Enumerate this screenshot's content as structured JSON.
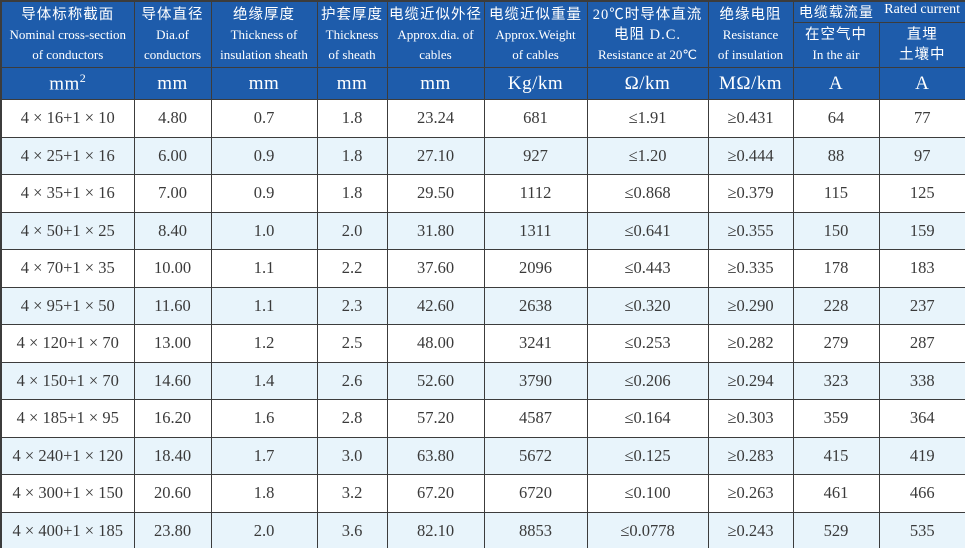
{
  "colors": {
    "header_bg": "#1e5cab",
    "row_alt_bg": "#e8f4fb",
    "border": "#3c3c3c",
    "body_text": "#3a3a3a",
    "header_text": "#ffffff"
  },
  "header": {
    "col1": {
      "zh": "导体标称截面",
      "en": "Nominal cross-section\nof conductors",
      "unit": "mm²"
    },
    "col2": {
      "zh": "导体直径",
      "en": "Dia.of\nconductors",
      "unit": "mm"
    },
    "col3": {
      "zh": "绝缘厚度",
      "en": "Thickness of\ninsulation sheath",
      "unit": "mm"
    },
    "col4": {
      "zh": "护套厚度",
      "en": "Thickness\nof sheath",
      "unit": "mm"
    },
    "col5": {
      "zh": "电缆近似外径",
      "en": "Approx.dia. of\ncables",
      "unit": "mm"
    },
    "col6": {
      "zh": "电缆近似重量",
      "en": "Approx.Weight\nof cables",
      "unit": "Kg/km"
    },
    "col7": {
      "zh": "20℃时导体直流\n电阻 D.C.",
      "en": "Resistance at 20℃",
      "unit": "Ω/km"
    },
    "col8": {
      "zh": "绝缘电阻",
      "en": "Resistance\nof insulation",
      "unit": "MΩ/km"
    },
    "group": {
      "zh": "电缆载流量",
      "en": "Rated current"
    },
    "col9": {
      "zh": "在空气中",
      "en": "In the air",
      "unit": "A"
    },
    "col10": {
      "zh": "直埋\n土壤中",
      "unit": "A"
    }
  },
  "rows": [
    [
      "4 × 16+1 × 10",
      "4.80",
      "0.7",
      "1.8",
      "23.24",
      "681",
      "≤1.91",
      "≥0.431",
      "64",
      "77"
    ],
    [
      "4 × 25+1 × 16",
      "6.00",
      "0.9",
      "1.8",
      "27.10",
      "927",
      "≤1.20",
      "≥0.444",
      "88",
      "97"
    ],
    [
      "4 × 35+1 × 16",
      "7.00",
      "0.9",
      "1.8",
      "29.50",
      "1112",
      "≤0.868",
      "≥0.379",
      "115",
      "125"
    ],
    [
      "4 × 50+1 × 25",
      "8.40",
      "1.0",
      "2.0",
      "31.80",
      "1311",
      "≤0.641",
      "≥0.355",
      "150",
      "159"
    ],
    [
      "4 × 70+1 × 35",
      "10.00",
      "1.1",
      "2.2",
      "37.60",
      "2096",
      "≤0.443",
      "≥0.335",
      "178",
      "183"
    ],
    [
      "4 × 95+1 × 50",
      "11.60",
      "1.1",
      "2.3",
      "42.60",
      "2638",
      "≤0.320",
      "≥0.290",
      "228",
      "237"
    ],
    [
      "4 × 120+1 × 70",
      "13.00",
      "1.2",
      "2.5",
      "48.00",
      "3241",
      "≤0.253",
      "≥0.282",
      "279",
      "287"
    ],
    [
      "4 × 150+1 × 70",
      "14.60",
      "1.4",
      "2.6",
      "52.60",
      "3790",
      "≤0.206",
      "≥0.294",
      "323",
      "338"
    ],
    [
      "4 × 185+1 × 95",
      "16.20",
      "1.6",
      "2.8",
      "57.20",
      "4587",
      "≤0.164",
      "≥0.303",
      "359",
      "364"
    ],
    [
      "4 × 240+1 × 120",
      "18.40",
      "1.7",
      "3.0",
      "63.80",
      "5672",
      "≤0.125",
      "≥0.283",
      "415",
      "419"
    ],
    [
      "4 × 300+1 × 150",
      "20.60",
      "1.8",
      "3.2",
      "67.20",
      "6720",
      "≤0.100",
      "≥0.263",
      "461",
      "466"
    ],
    [
      "4 × 400+1 × 185",
      "23.80",
      "2.0",
      "3.6",
      "82.10",
      "8853",
      "≤0.0778",
      "≥0.243",
      "529",
      "535"
    ]
  ]
}
